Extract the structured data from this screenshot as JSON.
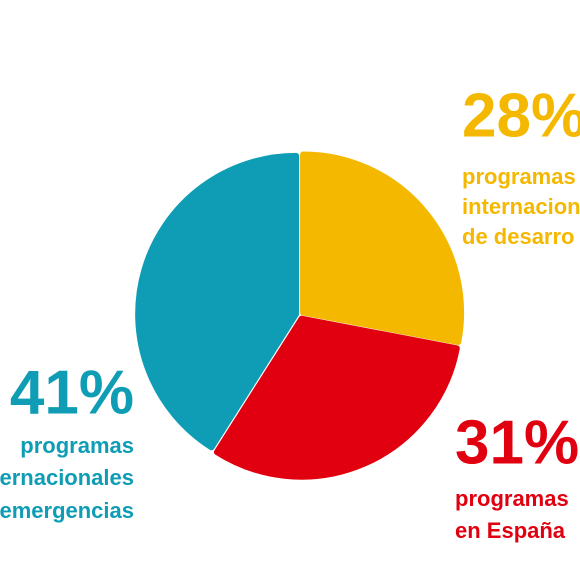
{
  "chart_data": {
    "type": "pie",
    "values": [
      28,
      31,
      41
    ],
    "value_labels": [
      "28%",
      "31%",
      "41%"
    ],
    "colors": [
      "#f5b800",
      "#e1000f",
      "#0f9db5"
    ],
    "labels": [
      [
        "programas",
        "internacion",
        "de desarro"
      ],
      [
        "programas",
        "en España"
      ],
      [
        "programas",
        "ernacionales",
        "emergencias"
      ]
    ]
  }
}
